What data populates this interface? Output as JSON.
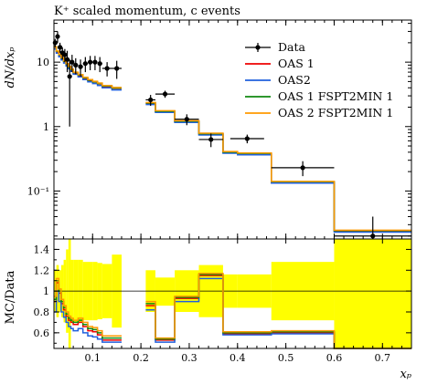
{
  "chart_data": {
    "type": "line",
    "title": "K⁺ scaled momentum, c events",
    "xlabel": "xₚ",
    "ylabel": "dN/dxₚ",
    "ratio_ylabel": "MC/Data",
    "yscale": "log",
    "xlim": [
      0.02,
      0.76
    ],
    "ylim": [
      0.018,
      45
    ],
    "ratio_ylim": [
      0.45,
      1.5
    ],
    "x_ticks": [
      0.1,
      0.2,
      0.3,
      0.4,
      0.5,
      0.6,
      0.7
    ],
    "x_tick_labels": [
      "0.1",
      "0.2",
      "0.3",
      "0.4",
      "0.5",
      "0.6",
      "0.7"
    ],
    "y_ticks": [
      0.1,
      1,
      10
    ],
    "y_tick_labels": [
      "10⁻¹",
      "1",
      "10"
    ],
    "ratio_ticks": [
      0.6,
      0.8,
      1.0,
      1.2,
      1.4
    ],
    "ratio_tick_labels": [
      "0.6",
      "0.8",
      "1",
      "1.2",
      "1.4"
    ],
    "grid": false,
    "legend_position": "top-right",
    "bin_edges": [
      0.02,
      0.025,
      0.03,
      0.035,
      0.04,
      0.045,
      0.05,
      0.055,
      0.06,
      0.07,
      0.08,
      0.09,
      0.1,
      0.11,
      0.12,
      0.14,
      0.16,
      0.21,
      0.23,
      0.27,
      0.32,
      0.37,
      0.4,
      0.47,
      0.6,
      0.76
    ],
    "data": {
      "name": "Data",
      "color": "#000000",
      "points": [
        {
          "x": 0.0225,
          "y": 20.0,
          "yerr": 3.0,
          "xerr": 0.0025
        },
        {
          "x": 0.0275,
          "y": 25.0,
          "yerr": 5.0,
          "xerr": 0.0025
        },
        {
          "x": 0.0325,
          "y": 17.0,
          "yerr": 3.0,
          "xerr": 0.0025
        },
        {
          "x": 0.0375,
          "y": 14.0,
          "yerr": 3.0,
          "xerr": 0.0025
        },
        {
          "x": 0.0425,
          "y": 13.0,
          "yerr": 3.0,
          "xerr": 0.0025
        },
        {
          "x": 0.0475,
          "y": 11.0,
          "yerr": 4.0,
          "xerr": 0.0025
        },
        {
          "x": 0.0525,
          "y": 6.0,
          "yerr": 5.0,
          "xerr": 0.0025
        },
        {
          "x": 0.0575,
          "y": 10.0,
          "yerr": 3.0,
          "xerr": 0.0025
        },
        {
          "x": 0.065,
          "y": 9.0,
          "yerr": 2.5,
          "xerr": 0.005
        },
        {
          "x": 0.075,
          "y": 8.5,
          "yerr": 2.5,
          "xerr": 0.005
        },
        {
          "x": 0.085,
          "y": 9.5,
          "yerr": 2.5,
          "xerr": 0.005
        },
        {
          "x": 0.095,
          "y": 10.0,
          "yerr": 2.5,
          "xerr": 0.005
        },
        {
          "x": 0.105,
          "y": 10.0,
          "yerr": 2.5,
          "xerr": 0.005
        },
        {
          "x": 0.115,
          "y": 9.5,
          "yerr": 2.5,
          "xerr": 0.005
        },
        {
          "x": 0.13,
          "y": 8.0,
          "yerr": 2.0,
          "xerr": 0.01
        },
        {
          "x": 0.15,
          "y": 8.0,
          "yerr": 2.5,
          "xerr": 0.01
        },
        {
          "x": 0.22,
          "y": 2.6,
          "yerr": 0.5,
          "xerr": 0.01
        },
        {
          "x": 0.25,
          "y": 3.2,
          "yerr": 0.4,
          "xerr": 0.02
        },
        {
          "x": 0.295,
          "y": 1.3,
          "yerr": 0.25,
          "xerr": 0.025
        },
        {
          "x": 0.345,
          "y": 0.63,
          "yerr": 0.15,
          "xerr": 0.025
        },
        {
          "x": 0.42,
          "y": 0.65,
          "yerr": 0.1,
          "xerr": 0.035
        },
        {
          "x": 0.535,
          "y": 0.23,
          "yerr": 0.06,
          "xerr": 0.065
        },
        {
          "x": 0.68,
          "y": 0.02,
          "yerr": 0.02,
          "xerr": 0.08
        }
      ]
    },
    "series": [
      {
        "name": "OAS 1",
        "color": "#ee0000",
        "values": [
          17.0,
          14.5,
          12.8,
          11.4,
          10.2,
          9.2,
          8.3,
          7.6,
          6.8,
          6.2,
          5.6,
          5.2,
          4.9,
          4.6,
          4.2,
          3.9,
          null,
          2.3,
          1.72,
          1.2,
          0.77,
          0.4,
          0.38,
          0.138,
          0.024
        ]
      },
      {
        "name": "OAS2",
        "color": "#2060dd",
        "values": [
          16.0,
          13.8,
          12.1,
          10.8,
          9.7,
          8.7,
          7.9,
          7.2,
          6.5,
          5.9,
          5.35,
          4.95,
          4.65,
          4.35,
          4.0,
          3.7,
          null,
          2.2,
          1.66,
          1.16,
          0.74,
          0.385,
          0.365,
          0.133,
          0.023
        ]
      },
      {
        "name": "OAS 1 FSPT2MIN 1",
        "color": "#118811",
        "values": [
          17.2,
          14.7,
          13.0,
          11.6,
          10.3,
          9.3,
          8.4,
          7.7,
          6.9,
          6.3,
          5.7,
          5.25,
          4.95,
          4.65,
          4.25,
          3.95,
          null,
          2.32,
          1.73,
          1.21,
          0.775,
          0.402,
          0.382,
          0.139,
          0.0242
        ]
      },
      {
        "name": "OAS 2 FSPT2MIN 1",
        "color": "#ff9900",
        "values": [
          17.4,
          14.9,
          13.2,
          11.8,
          10.5,
          9.5,
          8.6,
          7.8,
          7.0,
          6.4,
          5.8,
          5.35,
          5.05,
          4.75,
          4.35,
          4.05,
          null,
          2.36,
          1.76,
          1.23,
          0.79,
          0.41,
          0.39,
          0.141,
          0.0246
        ]
      }
    ],
    "ratio_series": [
      {
        "name": "OAS 1",
        "color": "#ee0000",
        "values": [
          0.9,
          1.08,
          0.98,
          0.88,
          0.82,
          0.76,
          0.72,
          0.7,
          0.68,
          0.7,
          0.66,
          0.62,
          0.61,
          0.58,
          0.53,
          0.53,
          null,
          0.86,
          0.53,
          0.93,
          1.15,
          0.59,
          0.59,
          0.6,
          0.45
        ]
      },
      {
        "name": "OAS2",
        "color": "#2060dd",
        "values": [
          0.8,
          1.0,
          0.9,
          0.8,
          0.75,
          0.7,
          0.66,
          0.64,
          0.62,
          0.64,
          0.6,
          0.57,
          0.56,
          0.54,
          0.51,
          0.51,
          null,
          0.82,
          0.51,
          0.9,
          1.12,
          0.58,
          0.58,
          0.59,
          0.45
        ]
      },
      {
        "name": "OAS 1 FSPT2MIN 1",
        "color": "#118811",
        "values": [
          0.92,
          1.1,
          1.0,
          0.9,
          0.84,
          0.78,
          0.74,
          0.72,
          0.7,
          0.72,
          0.68,
          0.64,
          0.63,
          0.6,
          0.55,
          0.55,
          null,
          0.88,
          0.54,
          0.94,
          1.16,
          0.6,
          0.6,
          0.61,
          0.45
        ]
      },
      {
        "name": "OAS 2 FSPT2MIN 1",
        "color": "#ff9900",
        "values": [
          0.95,
          1.12,
          1.02,
          0.92,
          0.86,
          0.8,
          0.76,
          0.74,
          0.72,
          0.74,
          0.7,
          0.66,
          0.65,
          0.62,
          0.57,
          0.57,
          null,
          0.9,
          0.55,
          0.95,
          1.17,
          0.61,
          0.61,
          0.62,
          0.45
        ]
      }
    ],
    "ratio_band": [
      {
        "x0": 0.02,
        "x1": 0.025,
        "lo": 0.8,
        "hi": 1.2
      },
      {
        "x0": 0.025,
        "x1": 0.03,
        "lo": 0.75,
        "hi": 1.25
      },
      {
        "x0": 0.03,
        "x1": 0.035,
        "lo": 0.8,
        "hi": 1.2
      },
      {
        "x0": 0.035,
        "x1": 0.04,
        "lo": 0.75,
        "hi": 1.25
      },
      {
        "x0": 0.04,
        "x1": 0.045,
        "lo": 0.7,
        "hi": 1.3
      },
      {
        "x0": 0.045,
        "x1": 0.05,
        "lo": 0.6,
        "hi": 1.4
      },
      {
        "x0": 0.05,
        "x1": 0.055,
        "lo": 0.45,
        "hi": 1.5
      },
      {
        "x0": 0.055,
        "x1": 0.06,
        "lo": 0.7,
        "hi": 1.3
      },
      {
        "x0": 0.06,
        "x1": 0.07,
        "lo": 0.7,
        "hi": 1.3
      },
      {
        "x0": 0.07,
        "x1": 0.08,
        "lo": 0.7,
        "hi": 1.3
      },
      {
        "x0": 0.08,
        "x1": 0.09,
        "lo": 0.72,
        "hi": 1.28
      },
      {
        "x0": 0.09,
        "x1": 0.1,
        "lo": 0.72,
        "hi": 1.28
      },
      {
        "x0": 0.1,
        "x1": 0.11,
        "lo": 0.72,
        "hi": 1.28
      },
      {
        "x0": 0.11,
        "x1": 0.12,
        "lo": 0.73,
        "hi": 1.27
      },
      {
        "x0": 0.12,
        "x1": 0.14,
        "lo": 0.74,
        "hi": 1.26
      },
      {
        "x0": 0.14,
        "x1": 0.16,
        "lo": 0.65,
        "hi": 1.35
      },
      {
        "x0": 0.21,
        "x1": 0.23,
        "lo": 0.8,
        "hi": 1.2
      },
      {
        "x0": 0.23,
        "x1": 0.27,
        "lo": 0.86,
        "hi": 1.13
      },
      {
        "x0": 0.27,
        "x1": 0.32,
        "lo": 0.8,
        "hi": 1.2
      },
      {
        "x0": 0.32,
        "x1": 0.37,
        "lo": 0.75,
        "hi": 1.25
      },
      {
        "x0": 0.37,
        "x1": 0.4,
        "lo": 0.84,
        "hi": 1.16
      },
      {
        "x0": 0.4,
        "x1": 0.47,
        "lo": 0.84,
        "hi": 1.16
      },
      {
        "x0": 0.47,
        "x1": 0.6,
        "lo": 0.72,
        "hi": 1.28
      },
      {
        "x0": 0.6,
        "x1": 0.76,
        "lo": 0.45,
        "hi": 1.5
      }
    ],
    "band_color": "#ffff00"
  }
}
